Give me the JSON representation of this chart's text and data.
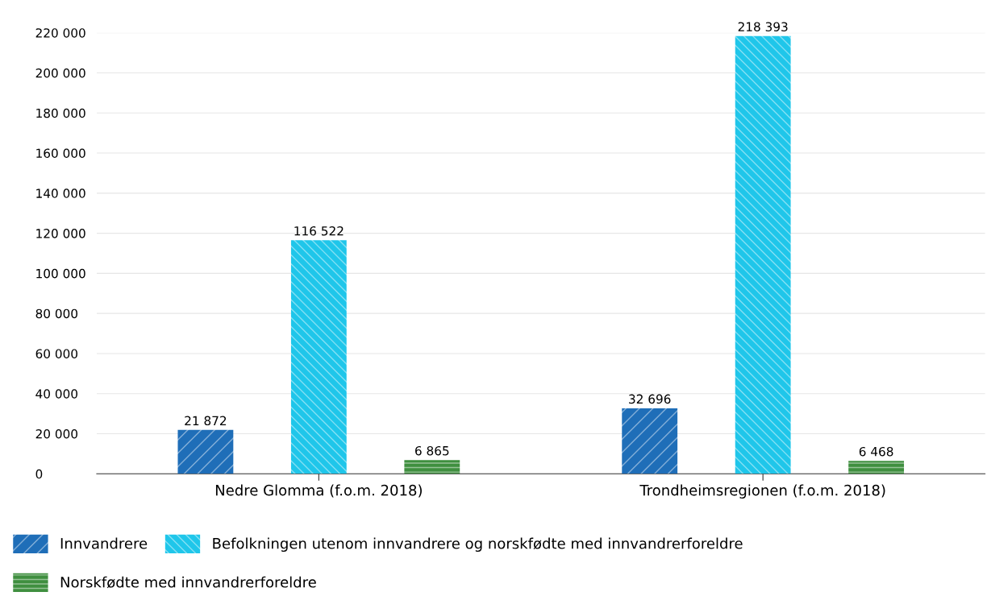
{
  "chart_data": {
    "type": "bar",
    "categories": [
      "Nedre Glomma (f.o.m. 2018)",
      "Trondheimsregionen (f.o.m. 2018)"
    ],
    "series": [
      {
        "name": "Innvandrere",
        "color": "#1f6eb8",
        "values": [
          21872,
          32696
        ],
        "value_labels": [
          "21 872",
          "32 696"
        ]
      },
      {
        "name": "Befolkningen utenom innvandrere og norskfødte med innvandrerforeldre",
        "color": "#1fc6ea",
        "values": [
          116522,
          218393
        ],
        "value_labels": [
          "116 522",
          "218 393"
        ]
      },
      {
        "name": "Norskfødte med innvandrerforeldre",
        "color": "#3f8f3f",
        "values": [
          6865,
          6468
        ],
        "value_labels": [
          "6 865",
          "6 468"
        ]
      }
    ],
    "ylim": [
      0,
      220000
    ],
    "yticks": [
      0,
      {
        "value": 20000,
        "label": "20 000"
      },
      {
        "value": 40000,
        "label": "40 000"
      },
      {
        "value": 60000,
        "label": "60 000"
      },
      {
        "value": 80000,
        "label": "80 000"
      },
      {
        "value": 100000,
        "label": "100 000"
      },
      {
        "value": 120000,
        "label": "120 000"
      },
      {
        "value": 140000,
        "label": "140 000"
      },
      {
        "value": 160000,
        "label": "160 000"
      },
      {
        "value": 180000,
        "label": "180 000"
      },
      {
        "value": 200000,
        "label": "200 000"
      },
      {
        "value": 220000,
        "label": "220 000"
      }
    ],
    "grid": "y",
    "legend": "bottom"
  }
}
